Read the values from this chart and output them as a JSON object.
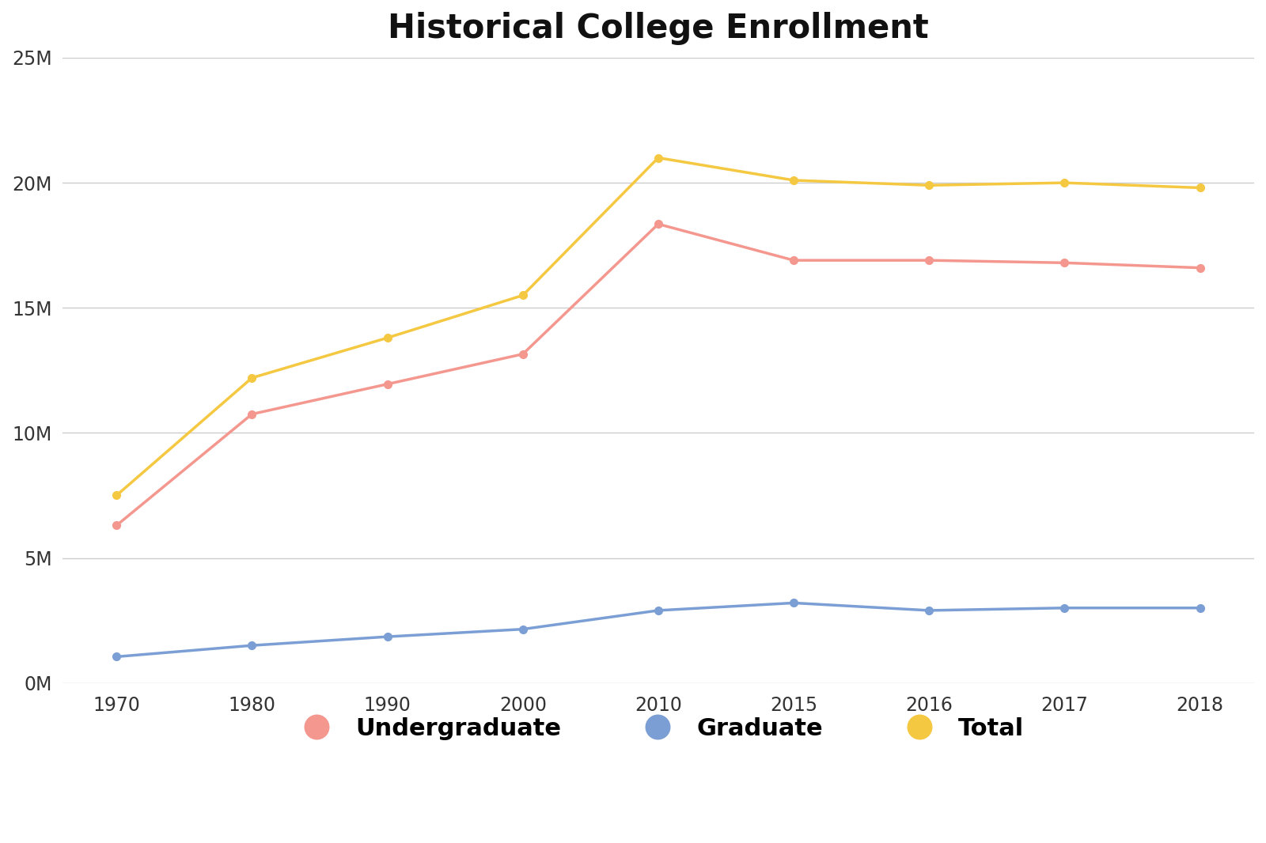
{
  "title": "Historical College Enrollment",
  "years": [
    1970,
    1980,
    1990,
    2000,
    2010,
    2015,
    2016,
    2017,
    2018
  ],
  "year_labels": [
    "1970",
    "1980",
    "1990",
    "2000",
    "2010",
    "2015",
    "2016",
    "2017",
    "2018"
  ],
  "undergraduate": [
    6300000,
    10750000,
    11950000,
    13150000,
    18350000,
    16900000,
    16900000,
    16800000,
    16600000
  ],
  "graduate": [
    1050000,
    1500000,
    1850000,
    2150000,
    2900000,
    3200000,
    2900000,
    3000000,
    3000000
  ],
  "total": [
    7500000,
    12200000,
    13800000,
    15500000,
    21000000,
    20100000,
    19900000,
    20000000,
    19800000
  ],
  "undergraduate_color": "#F4978E",
  "graduate_color": "#7B9FD4",
  "total_color": "#F5C842",
  "background_color": "#FFFFFF",
  "grid_color": "#CCCCCC",
  "ylim": [
    0,
    25000000
  ],
  "yticks": [
    0,
    5000000,
    10000000,
    15000000,
    20000000,
    25000000
  ],
  "ytick_labels": [
    "0M",
    "5M",
    "10M",
    "15M",
    "20M",
    "25M"
  ],
  "title_fontsize": 30,
  "legend_fontsize": 22,
  "tick_fontsize": 17,
  "line_width": 2.5,
  "marker_size": 7,
  "legend_marker_size": 22
}
